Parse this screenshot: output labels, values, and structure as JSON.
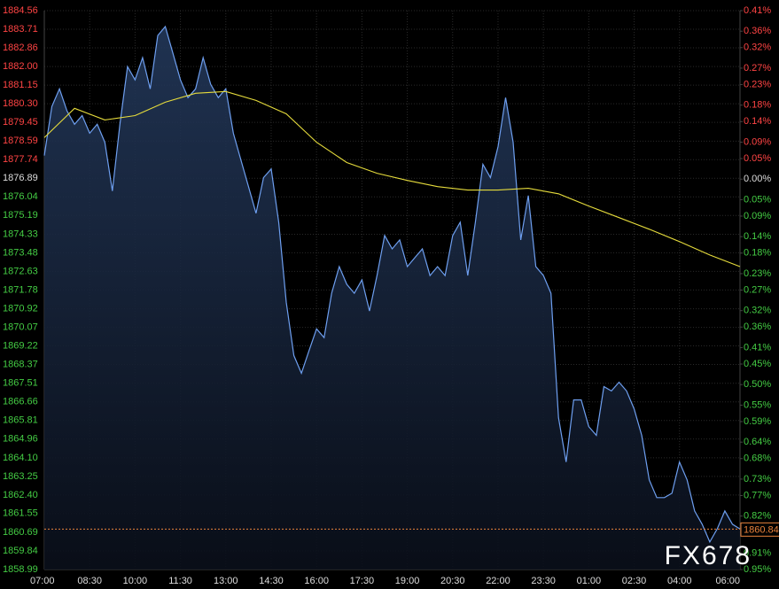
{
  "chart_data": {
    "type": "line",
    "xlim": [
      "07:00",
      "06:00"
    ],
    "xticks": [
      "07:00",
      "08:30",
      "10:00",
      "11:30",
      "13:00",
      "14:30",
      "16:00",
      "17:30",
      "19:00",
      "20:30",
      "22:00",
      "23:30",
      "01:00",
      "02:30",
      "04:00",
      "06:00"
    ],
    "ylim": [
      1858.99,
      1884.56
    ],
    "yticks": [
      1884.56,
      1883.71,
      1882.86,
      {
        "value": 1882,
        "label": "1882.00"
      },
      1881.15,
      {
        "value": 1880.3,
        "label": "1880.30"
      },
      1879.45,
      1878.59,
      1877.74,
      1876.89,
      1876.04,
      1875.19,
      1874.33,
      1873.48,
      1872.63,
      1871.78,
      1870.92,
      1870.07,
      1869.22,
      1868.37,
      1867.51,
      1866.66,
      1865.81,
      1864.96,
      {
        "value": 1864.1,
        "label": "1864.10"
      },
      1863.25,
      {
        "value": 1862.4,
        "label": "1862.40"
      },
      1861.55,
      1860.69,
      1859.84,
      1858.99
    ],
    "y2lim": [
      -0.95,
      0.41
    ],
    "y2ticks": [
      {
        "value": 0.41,
        "label": "0.41%"
      },
      {
        "value": 0.36,
        "label": "0.36%"
      },
      {
        "value": 0.32,
        "label": "0.32%"
      },
      {
        "value": 0.27,
        "label": "0.27%"
      },
      {
        "value": 0.23,
        "label": "0.23%"
      },
      {
        "value": 0.18,
        "label": "0.18%"
      },
      {
        "value": 0.14,
        "label": "0.14%"
      },
      {
        "value": 0.09,
        "label": "0.09%"
      },
      {
        "value": 0.05,
        "label": "0.05%"
      },
      {
        "value": 0,
        "label": "0.00%"
      },
      {
        "value": -0.05,
        "label": "0.05%"
      },
      {
        "value": -0.09,
        "label": "0.09%"
      },
      {
        "value": -0.14,
        "label": "0.14%"
      },
      {
        "value": -0.18,
        "label": "0.18%"
      },
      {
        "value": -0.23,
        "label": "0.23%"
      },
      {
        "value": -0.27,
        "label": "0.27%"
      },
      {
        "value": -0.32,
        "label": "0.32%"
      },
      {
        "value": -0.36,
        "label": "0.36%"
      },
      {
        "value": -0.41,
        "label": "0.41%"
      },
      {
        "value": -0.45,
        "label": "0.45%"
      },
      {
        "value": -0.5,
        "label": "0.50%"
      },
      {
        "value": -0.55,
        "label": "0.55%"
      },
      {
        "value": -0.59,
        "label": "0.59%"
      },
      {
        "value": -0.64,
        "label": "0.64%"
      },
      {
        "value": -0.68,
        "label": "0.68%"
      },
      {
        "value": -0.73,
        "label": "0.73%"
      },
      {
        "value": -0.77,
        "label": "0.77%"
      },
      {
        "value": -0.82,
        "label": "0.82%"
      },
      {
        "value": -0.86,
        "label": "0.86%"
      },
      {
        "value": -0.91,
        "label": "0.91%"
      },
      {
        "value": -0.95,
        "label": "0.95%"
      }
    ],
    "up_color": "#ff4444",
    "down_color": "#44cc44",
    "flat_color": "#dddddd",
    "grid": true,
    "series": [
      {
        "color": "#6e9ff0",
        "area": true,
        "x": [
          "07:00",
          "07:15",
          "07:30",
          "07:45",
          "08:00",
          "08:15",
          "08:30",
          "08:45",
          "09:00",
          "09:15",
          "09:30",
          "09:45",
          "10:00",
          "10:15",
          "10:30",
          "10:45",
          "11:00",
          "11:15",
          "11:30",
          "11:45",
          "12:00",
          "12:15",
          "12:30",
          "12:45",
          "13:00",
          "13:15",
          "13:30",
          "13:45",
          "14:00",
          "14:15",
          "14:30",
          "14:45",
          "15:00",
          "15:15",
          "15:30",
          "15:45",
          "16:00",
          "16:15",
          "16:30",
          "16:45",
          "17:00",
          "17:15",
          "17:30",
          "17:45",
          "18:00",
          "18:15",
          "18:30",
          "18:45",
          "19:00",
          "19:15",
          "19:30",
          "19:45",
          "20:00",
          "20:15",
          "20:30",
          "20:45",
          "21:00",
          "21:15",
          "21:30",
          "21:45",
          "22:00",
          "22:15",
          "22:30",
          "22:45",
          "23:00",
          "23:15",
          "23:30",
          "23:45",
          "00:00",
          "00:15",
          "00:30",
          "00:45",
          "01:00",
          "01:15",
          "01:30",
          "01:45",
          "02:00",
          "02:15",
          "02:30",
          "02:45",
          "03:00",
          "03:15",
          "03:30",
          "03:45",
          "04:00",
          "04:15",
          "04:30",
          "04:45",
          "05:00",
          "05:15",
          "05:30",
          "05:45",
          "06:00"
        ],
        "values": [
          1877.93,
          1880.17,
          1880.98,
          1879.97,
          1879.36,
          1879.76,
          1878.95,
          1879.36,
          1878.54,
          1876.31,
          1879.36,
          1882.0,
          1881.39,
          1882.41,
          1880.98,
          1883.42,
          1883.83,
          1882.61,
          1881.39,
          1880.58,
          1880.98,
          1882.41,
          1881.19,
          1880.58,
          1880.98,
          1878.95,
          1877.73,
          1876.51,
          1875.29,
          1876.92,
          1877.32,
          1874.88,
          1871.22,
          1868.78,
          1867.97,
          1868.99,
          1870.0,
          1869.6,
          1871.63,
          1872.85,
          1872.04,
          1871.63,
          1872.24,
          1870.82,
          1872.44,
          1874.27,
          1873.66,
          1874.07,
          1872.85,
          1873.26,
          1873.66,
          1872.44,
          1872.85,
          1872.44,
          1874.27,
          1874.88,
          1872.44,
          1874.88,
          1877.53,
          1876.92,
          1878.34,
          1880.58,
          1878.54,
          1874.07,
          1876.1,
          1872.85,
          1872.44,
          1871.63,
          1865.94,
          1863.91,
          1866.75,
          1866.75,
          1865.53,
          1865.13,
          1867.36,
          1867.16,
          1867.56,
          1867.16,
          1866.34,
          1865.13,
          1863.09,
          1862.28,
          1862.28,
          1862.48,
          1863.91,
          1863.09,
          1861.67,
          1861.06,
          1860.25,
          1860.86,
          1861.67,
          1861.06,
          1860.84
        ]
      },
      {
        "color": "#e6dc3c",
        "x": [
          "07:00",
          "08:00",
          "09:00",
          "10:00",
          "11:00",
          "12:00",
          "13:00",
          "14:00",
          "15:00",
          "16:00",
          "17:00",
          "18:00",
          "19:00",
          "20:00",
          "21:00",
          "22:00",
          "23:00",
          "00:00",
          "01:00",
          "02:00",
          "03:00",
          "04:00",
          "05:00",
          "06:00"
        ],
        "values": [
          1878.75,
          1880.09,
          1879.56,
          1879.76,
          1880.37,
          1880.78,
          1880.86,
          1880.45,
          1879.84,
          1878.54,
          1877.61,
          1877.12,
          1876.79,
          1876.51,
          1876.35,
          1876.35,
          1876.43,
          1876.18,
          1875.62,
          1875.09,
          1874.56,
          1873.99,
          1873.38,
          1872.85
        ]
      }
    ],
    "last_price": 1860.84,
    "last_color": "#e8823c",
    "watermark": "FX678"
  }
}
